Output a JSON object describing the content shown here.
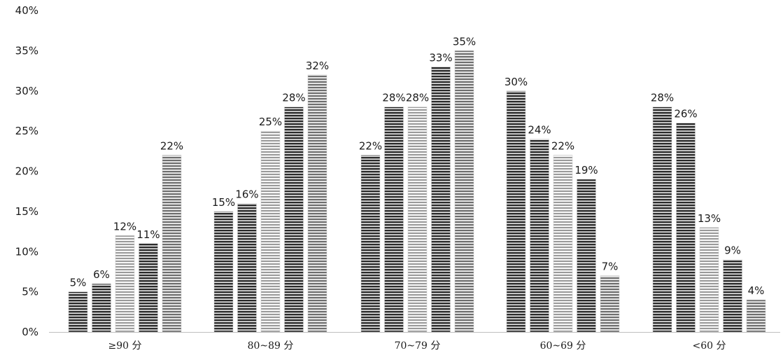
{
  "chart_data": {
    "type": "bar",
    "title": "",
    "xlabel": "",
    "ylabel": "",
    "ylim": [
      0,
      40
    ],
    "yticks": [
      "0%",
      "5%",
      "10%",
      "15%",
      "20%",
      "25%",
      "30%",
      "35%",
      "40%"
    ],
    "categories": [
      "≥90 分",
      "80~89 分",
      "70~79 分",
      "60~69 分",
      "<60 分"
    ],
    "value_suffix": "%",
    "grid": false,
    "legend": "none",
    "series": [
      {
        "values": [
          5,
          15,
          22,
          30,
          28
        ],
        "shade": "dark",
        "color": "#2b2b2b"
      },
      {
        "values": [
          6,
          16,
          28,
          24,
          26
        ],
        "shade": "dark",
        "color": "#3a3a3a"
      },
      {
        "values": [
          12,
          25,
          28,
          22,
          13
        ],
        "shade": "light",
        "color": "#9a9a9a"
      },
      {
        "values": [
          11,
          28,
          33,
          19,
          9
        ],
        "shade": "dark",
        "color": "#2f2f2f"
      },
      {
        "values": [
          22,
          32,
          35,
          7,
          4
        ],
        "shade": "mid",
        "color": "#6e6e6e"
      }
    ]
  }
}
